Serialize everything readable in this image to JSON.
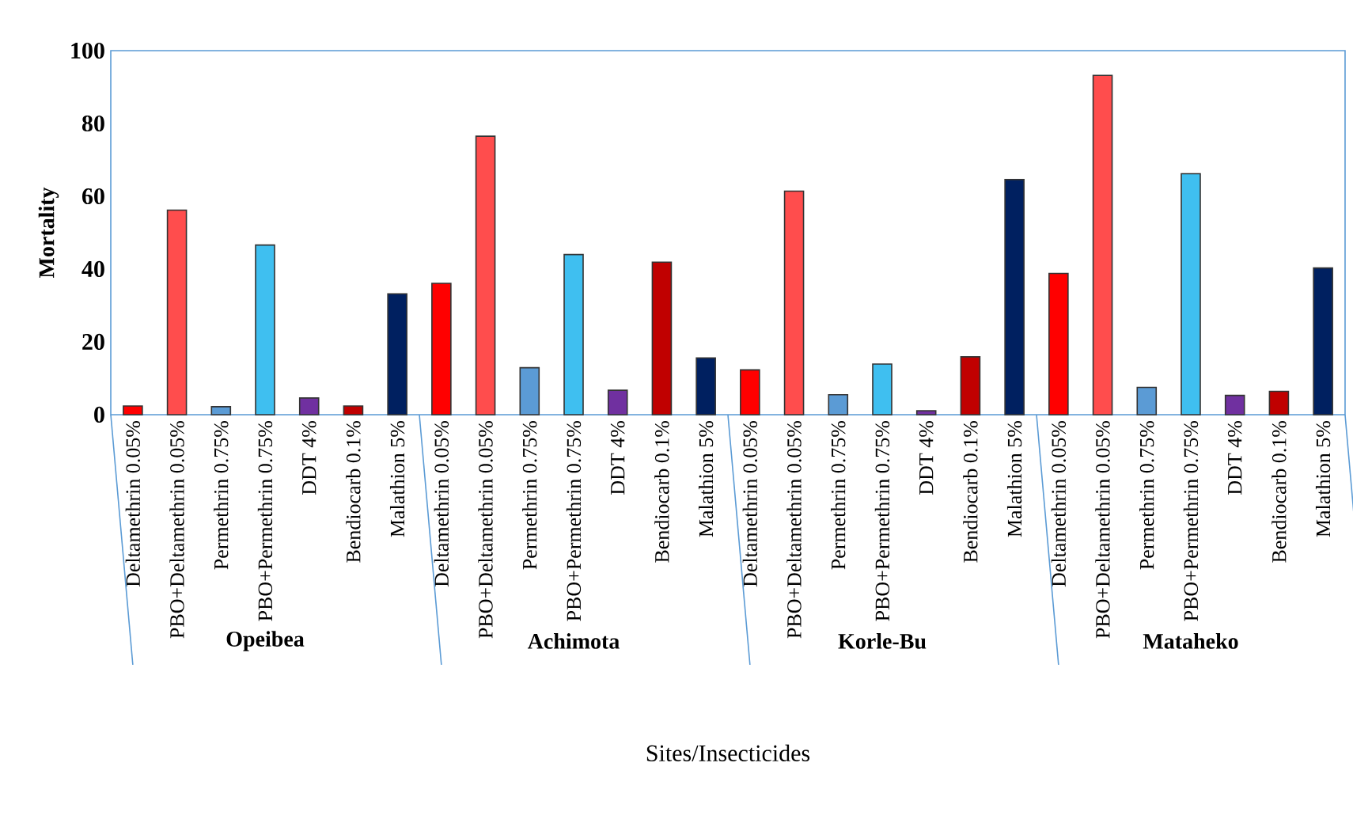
{
  "chart_data": {
    "type": "bar",
    "xlabel": "Sites/Insecticides",
    "ylabel": "Mortality",
    "categories": [
      "Deltamethrin 0.05%",
      "PBO+Deltamethrin 0.05%",
      "Permethrin 0.75%",
      "PBO+Permethrin 0.75%",
      "DDT 4%",
      "Bendiocarb 0.1%",
      "Malathion 5%",
      "Deltamethrin 0.05%",
      "PBO+Deltamethrin 0.05%",
      "Permethrin 0.75%",
      "PBO+Permethrin 0.75%",
      "DDT 4%",
      "Bendiocarb 0.1%",
      "Malathion 5%",
      "Deltamethrin 0.05%",
      "PBO+Deltamethrin 0.05%",
      "Permethrin 0.75%",
      "PBO+Permethrin 0.75%",
      "DDT 4%",
      "Bendiocarb 0.1%",
      "Malathion 5%",
      "Deltamethrin 0.05%",
      "PBO+Deltamethrin 0.05%",
      "Permethrin 0.75%",
      "PBO+Permethrin 0.75%",
      "DDT 4%",
      "Bendiocarb 0.1%",
      "Malathion 5%"
    ],
    "values": [
      2.4,
      56.2,
      2.2,
      46.6,
      4.6,
      2.4,
      33.2,
      36.1,
      76.5,
      12.9,
      44.0,
      6.7,
      41.9,
      15.6,
      12.3,
      61.4,
      5.5,
      13.9,
      1.1,
      15.9,
      64.6,
      38.8,
      93.2,
      7.5,
      66.2,
      5.3,
      6.4,
      40.3
    ],
    "colors": [
      "#ff0000",
      "#ff4d4d",
      "#5b9bd5",
      "#3fbff0",
      "#7030a0",
      "#c00000",
      "#002060",
      "#ff0000",
      "#ff4d4d",
      "#5b9bd5",
      "#3fbff0",
      "#7030a0",
      "#c00000",
      "#002060",
      "#ff0000",
      "#ff4d4d",
      "#5b9bd5",
      "#3fbff0",
      "#7030a0",
      "#c00000",
      "#002060",
      "#ff0000",
      "#ff4d4d",
      "#5b9bd5",
      "#3fbff0",
      "#7030a0",
      "#c00000",
      "#002060"
    ],
    "annotations": [
      "Opeibea",
      "Achimota",
      "Korle-Bu",
      "Mataheko"
    ],
    "ylim": [
      0,
      100
    ],
    "yticks": [
      0,
      20,
      40,
      60,
      80,
      100
    ],
    "grid": false
  }
}
